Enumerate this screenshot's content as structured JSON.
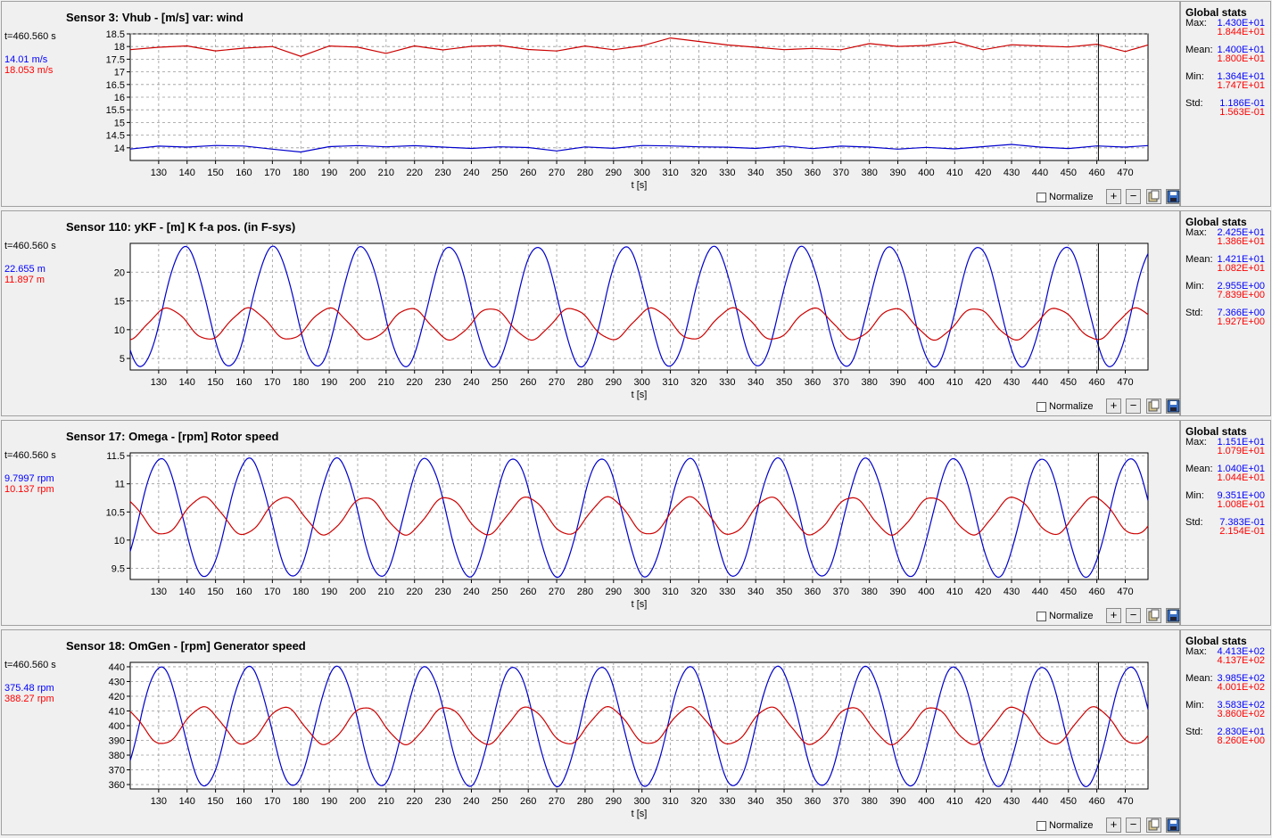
{
  "panels": [
    {
      "title": "Sensor 3: Vhub - [m/s] var: wind",
      "time": "t=460.560 s",
      "cur_a": "14.01 m/s",
      "cur_b": "18.053 m/s",
      "normalize_label": "Normalize",
      "stats_title": "Global stats",
      "stats": [
        {
          "label": "Max:",
          "a": "1.430E+01",
          "b": "1.844E+01"
        },
        {
          "label": "Mean:",
          "a": "1.400E+01",
          "b": "1.800E+01"
        },
        {
          "label": "Min:",
          "a": "1.364E+01",
          "b": "1.747E+01"
        },
        {
          "label": "Std:",
          "a": "1.186E-01",
          "b": "1.563E-01"
        }
      ]
    },
    {
      "title": "Sensor 110: yKF - [m] K f-a pos. (in F-sys)",
      "time": "t=460.560 s",
      "cur_a": "22.655 m",
      "cur_b": "11.897 m",
      "normalize_label": "Normalize",
      "stats_title": "Global stats",
      "stats": [
        {
          "label": "Max:",
          "a": "2.425E+01",
          "b": "1.386E+01"
        },
        {
          "label": "Mean:",
          "a": "1.421E+01",
          "b": "1.082E+01"
        },
        {
          "label": "Min:",
          "a": "2.955E+00",
          "b": "7.839E+00"
        },
        {
          "label": "Std:",
          "a": "7.366E+00",
          "b": "1.927E+00"
        }
      ]
    },
    {
      "title": "Sensor 17: Omega - [rpm] Rotor speed",
      "time": "t=460.560 s",
      "cur_a": "9.7997 rpm",
      "cur_b": "10.137 rpm",
      "normalize_label": "Normalize",
      "stats_title": "Global stats",
      "stats": [
        {
          "label": "Max:",
          "a": "1.151E+01",
          "b": "1.079E+01"
        },
        {
          "label": "Mean:",
          "a": "1.040E+01",
          "b": "1.044E+01"
        },
        {
          "label": "Min:",
          "a": "9.351E+00",
          "b": "1.008E+01"
        },
        {
          "label": "Std:",
          "a": "7.383E-01",
          "b": "2.154E-01"
        }
      ]
    },
    {
      "title": "Sensor 18: OmGen - [rpm] Generator speed",
      "time": "t=460.560 s",
      "cur_a": "375.48 rpm",
      "cur_b": "388.27 rpm",
      "normalize_label": "Normalize",
      "stats_title": "Global stats",
      "stats": [
        {
          "label": "Max:",
          "a": "4.413E+02",
          "b": "4.137E+02"
        },
        {
          "label": "Mean:",
          "a": "3.985E+02",
          "b": "4.001E+02"
        },
        {
          "label": "Min:",
          "a": "3.583E+02",
          "b": "3.860E+02"
        },
        {
          "label": "Std:",
          "a": "2.830E+01",
          "b": "8.260E+00"
        }
      ]
    }
  ],
  "buttons": {
    "plus": "+",
    "minus": "−"
  },
  "chart_data": [
    {
      "type": "line",
      "xlabel": "t [s]",
      "ylabel": "",
      "xlim": [
        120,
        478
      ],
      "ylim": [
        13.5,
        18.5
      ],
      "xticks": [
        130,
        140,
        150,
        160,
        170,
        180,
        190,
        200,
        210,
        220,
        230,
        240,
        250,
        260,
        270,
        280,
        290,
        300,
        310,
        320,
        330,
        340,
        350,
        360,
        370,
        380,
        390,
        400,
        410,
        420,
        430,
        440,
        450,
        460,
        470
      ],
      "yticks": [
        14,
        14.5,
        15,
        15.5,
        16,
        16.5,
        17,
        17.5,
        18,
        18.5
      ],
      "cursor_x": 460.56,
      "series": [
        {
          "color": "#0000cc",
          "x": [
            120,
            130,
            140,
            150,
            160,
            170,
            180,
            190,
            200,
            210,
            220,
            230,
            240,
            250,
            260,
            270,
            280,
            290,
            300,
            310,
            320,
            330,
            340,
            350,
            360,
            370,
            380,
            390,
            400,
            410,
            420,
            430,
            440,
            450,
            460,
            470,
            478
          ],
          "y": [
            13.95,
            14.08,
            14.05,
            14.12,
            14.1,
            13.97,
            13.85,
            14.05,
            14.08,
            14.02,
            14.06,
            14.0,
            13.95,
            14.02,
            14.0,
            13.88,
            14.05,
            14.0,
            14.12,
            14.1,
            14.06,
            14.04,
            13.98,
            14.06,
            13.95,
            14.04,
            14.0,
            13.92,
            14.0,
            13.95,
            14.05,
            14.15,
            14.05,
            14.0,
            14.1,
            14.05,
            14.1
          ]
        },
        {
          "color": "#cc0000",
          "x": [
            120,
            130,
            140,
            150,
            160,
            170,
            180,
            190,
            200,
            210,
            220,
            230,
            240,
            250,
            260,
            270,
            280,
            290,
            300,
            310,
            320,
            330,
            340,
            350,
            360,
            370,
            380,
            390,
            400,
            410,
            420,
            430,
            440,
            450,
            460,
            470,
            478
          ],
          "y": [
            17.9,
            18.0,
            18.05,
            17.85,
            17.95,
            18.0,
            17.6,
            18.0,
            17.95,
            17.7,
            18.0,
            17.85,
            18.0,
            18.05,
            17.9,
            17.85,
            18.05,
            17.9,
            18.05,
            18.35,
            18.2,
            18.05,
            17.95,
            17.85,
            17.9,
            17.85,
            18.1,
            18.0,
            18.05,
            18.2,
            17.9,
            18.1,
            18.05,
            18.0,
            18.1,
            17.8,
            18.05
          ]
        }
      ]
    },
    {
      "type": "line",
      "xlabel": "t [s]",
      "ylabel": "",
      "xlim": [
        120,
        478
      ],
      "ylim": [
        3,
        25
      ],
      "xticks": [
        130,
        140,
        150,
        160,
        170,
        180,
        190,
        200,
        210,
        220,
        230,
        240,
        250,
        260,
        270,
        280,
        290,
        300,
        310,
        320,
        330,
        340,
        350,
        360,
        370,
        380,
        390,
        400,
        410,
        420,
        430,
        440,
        450,
        460,
        470
      ],
      "yticks": [
        5,
        10,
        15,
        20
      ],
      "cursor_x": 460.56,
      "series": [
        {
          "color": "#0000cc",
          "amp": 10.4,
          "offset": 14.0,
          "period": 31.0,
          "phase": 7.5,
          "x0": 120,
          "x1": 478
        },
        {
          "color": "#cc0000",
          "amp": 2.7,
          "offset": 11.0,
          "period": 28.4,
          "phase": 12.5,
          "x0": 120,
          "x1": 478
        }
      ]
    },
    {
      "type": "line",
      "xlabel": "t [s]",
      "ylabel": "",
      "xlim": [
        120,
        478
      ],
      "ylim": [
        9.3,
        11.55
      ],
      "xticks": [
        130,
        140,
        150,
        160,
        170,
        180,
        190,
        200,
        210,
        220,
        230,
        240,
        250,
        260,
        270,
        280,
        290,
        300,
        310,
        320,
        330,
        340,
        350,
        360,
        370,
        380,
        390,
        400,
        410,
        420,
        430,
        440,
        450,
        460,
        470
      ],
      "yticks": [
        9.5,
        10,
        10.5,
        11,
        11.5
      ],
      "cursor_x": 460.56,
      "series": [
        {
          "color": "#0000cc",
          "amp": 1.05,
          "offset": 10.4,
          "period": 31.0,
          "phase": -1.0,
          "x0": 120,
          "x1": 478
        },
        {
          "color": "#cc0000",
          "amp": 0.33,
          "offset": 10.43,
          "period": 28.5,
          "phase": -4.0,
          "x0": 120,
          "x1": 478
        }
      ]
    },
    {
      "type": "line",
      "xlabel": "t [s]",
      "ylabel": "",
      "xlim": [
        120,
        478
      ],
      "ylim": [
        357,
        443
      ],
      "xticks": [
        130,
        140,
        150,
        160,
        170,
        180,
        190,
        200,
        210,
        220,
        230,
        240,
        250,
        260,
        270,
        280,
        290,
        300,
        310,
        320,
        330,
        340,
        350,
        360,
        370,
        380,
        390,
        400,
        410,
        420,
        430,
        440,
        450,
        460,
        470
      ],
      "yticks": [
        360,
        370,
        380,
        390,
        400,
        410,
        420,
        430,
        440
      ],
      "cursor_x": 460.56,
      "series": [
        {
          "color": "#0000cc",
          "amp": 40.5,
          "offset": 399.5,
          "period": 31.0,
          "phase": -1.0,
          "x0": 120,
          "x1": 478
        },
        {
          "color": "#cc0000",
          "amp": 12.5,
          "offset": 400.0,
          "period": 28.5,
          "phase": -4.0,
          "x0": 120,
          "x1": 478
        }
      ]
    }
  ]
}
